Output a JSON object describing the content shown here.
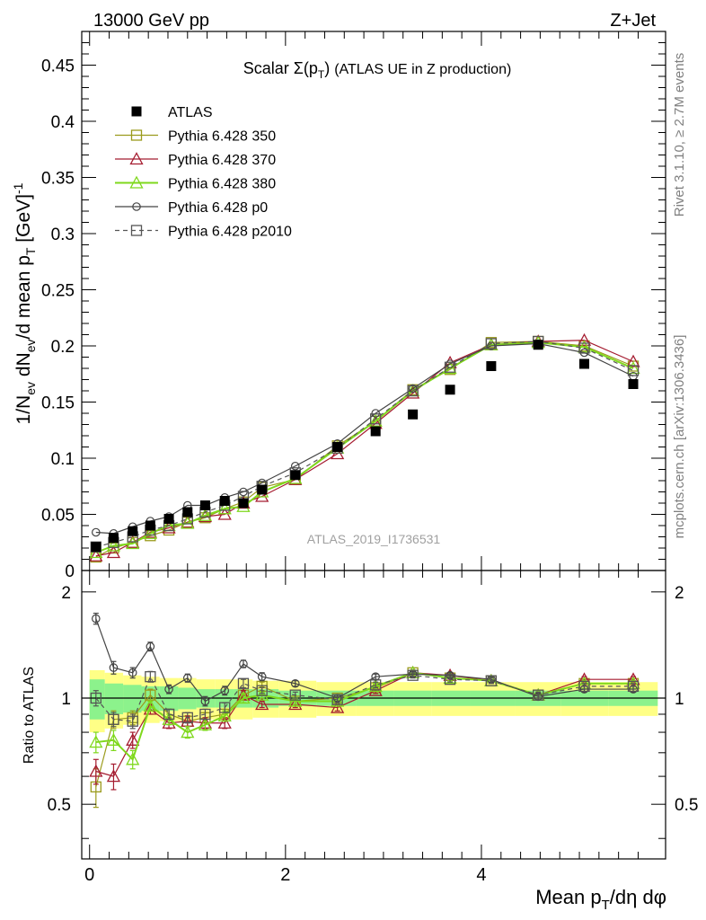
{
  "header": {
    "energy_label": "13000 GeV pp",
    "process_label": "Z+Jet"
  },
  "side_labels": {
    "rivet": "Rivet 3.1.10, ≥ 2.7M events",
    "mcplots": "mcplots.cern.ch [arXiv:1306.3436]"
  },
  "chart_data": {
    "type": "line",
    "title": "Scalar Σ(p_T) (ATLAS UE in Z production)",
    "analysis_id": "ATLAS_2019_I1736531",
    "xlabel": "Mean p_T/dη dφ",
    "ylabel": "1/N_ev dN_ev/d mean p_T [GeV]^-1",
    "ratio_ylabel": "Ratio to ATLAS",
    "xlim": [
      -0.08,
      5.88
    ],
    "ylim": [
      0,
      0.48
    ],
    "ratio_ylim": [
      0.35,
      2.3
    ],
    "x_ticks": [
      0,
      2,
      4
    ],
    "y_ticks": [
      "0",
      "0.05",
      "0.1",
      "0.15",
      "0.2",
      "0.25",
      "0.3",
      "0.35",
      "0.4",
      "0.45"
    ],
    "ratio_ticks": [
      "0.5",
      "1",
      "2"
    ],
    "legend_position": "top-left",
    "x": [
      0.065,
      0.245,
      0.44,
      0.62,
      0.81,
      1.0,
      1.18,
      1.38,
      1.57,
      1.76,
      2.1,
      2.53,
      2.92,
      3.3,
      3.68,
      4.1,
      4.58,
      5.05,
      5.55
    ],
    "ratio_band_inner": [
      0.13,
      0.1,
      0.09,
      0.08,
      0.08,
      0.07,
      0.06,
      0.06,
      0.06,
      0.06,
      0.05,
      0.05,
      0.05,
      0.05,
      0.05,
      0.05,
      0.05,
      0.05,
      0.05
    ],
    "ratio_band_outer": [
      0.2,
      0.18,
      0.16,
      0.15,
      0.14,
      0.14,
      0.13,
      0.13,
      0.13,
      0.12,
      0.12,
      0.11,
      0.11,
      0.11,
      0.11,
      0.11,
      0.11,
      0.11,
      0.11
    ],
    "series": [
      {
        "name": "ATLAS",
        "color": "#000000",
        "marker": "filled-square",
        "dashed": false,
        "values": [
          0.021,
          0.029,
          0.035,
          0.04,
          0.046,
          0.052,
          0.058,
          0.062,
          0.06,
          0.072,
          0.085,
          0.11,
          0.124,
          0.139,
          0.161,
          0.182,
          0.201,
          0.184,
          0.166
        ],
        "ratio": [
          1,
          1,
          1,
          1,
          1,
          1,
          1,
          1,
          1,
          1,
          1,
          1,
          1,
          1,
          1,
          1,
          1,
          1,
          1
        ]
      },
      {
        "name": "Pythia 6.428 350",
        "color": "#9b9b1c",
        "marker": "open-square",
        "dashed": false,
        "values": [
          0.012,
          0.02,
          0.025,
          0.031,
          0.036,
          0.043,
          0.047,
          0.055,
          0.061,
          0.074,
          0.081,
          0.111,
          0.133,
          0.161,
          0.179,
          0.203,
          0.204,
          0.2,
          0.182
        ],
        "ratio": [
          0.56,
          0.87,
          0.88,
          1.02,
          0.9,
          0.86,
          0.88,
          0.9,
          1.02,
          1.08,
          0.98,
          1.0,
          1.07,
          1.18,
          1.14,
          1.12,
          1.02,
          1.1,
          1.1
        ],
        "ratio_err": [
          0.07,
          0.05,
          0.04,
          0.04,
          0.03,
          0.03,
          0.03,
          0.03,
          0.03,
          0.03,
          0.02,
          0.02,
          0.02,
          0.02,
          0.02,
          0.02,
          0.02,
          0.02,
          0.02
        ]
      },
      {
        "name": "Pythia 6.428 370",
        "color": "#a51c30",
        "marker": "open-triangle",
        "dashed": false,
        "values": [
          0.013,
          0.016,
          0.025,
          0.034,
          0.038,
          0.043,
          0.048,
          0.05,
          0.06,
          0.066,
          0.081,
          0.104,
          0.131,
          0.158,
          0.185,
          0.201,
          0.204,
          0.205,
          0.186
        ],
        "ratio": [
          0.62,
          0.6,
          0.76,
          0.93,
          0.85,
          0.86,
          0.85,
          0.85,
          1.02,
          0.96,
          0.96,
          0.94,
          1.05,
          1.18,
          1.16,
          1.12,
          1.02,
          1.13,
          1.13
        ],
        "ratio_err": [
          0.05,
          0.05,
          0.04,
          0.03,
          0.03,
          0.03,
          0.03,
          0.03,
          0.03,
          0.02,
          0.02,
          0.02,
          0.02,
          0.02,
          0.02,
          0.02,
          0.02,
          0.02,
          0.02
        ]
      },
      {
        "name": "Pythia 6.428 380",
        "color": "#7fd81c",
        "marker": "open-triangle",
        "dashed": false,
        "values": [
          0.016,
          0.022,
          0.024,
          0.033,
          0.04,
          0.042,
          0.049,
          0.055,
          0.057,
          0.07,
          0.082,
          0.109,
          0.133,
          0.16,
          0.18,
          0.201,
          0.203,
          0.199,
          0.18
        ],
        "ratio": [
          0.75,
          0.76,
          0.67,
          0.95,
          0.87,
          0.8,
          0.84,
          0.89,
          1.0,
          1.02,
          0.98,
          0.98,
          1.08,
          1.18,
          1.14,
          1.12,
          1.02,
          1.1,
          1.1
        ],
        "ratio_err": [
          0.05,
          0.05,
          0.04,
          0.03,
          0.03,
          0.03,
          0.03,
          0.03,
          0.03,
          0.02,
          0.02,
          0.02,
          0.02,
          0.02,
          0.02,
          0.02,
          0.02,
          0.02,
          0.02
        ]
      },
      {
        "name": "Pythia 6.428 p0",
        "color": "#444444",
        "marker": "open-circle",
        "dashed": false,
        "values": [
          0.034,
          0.033,
          0.039,
          0.044,
          0.048,
          0.058,
          0.058,
          0.065,
          0.07,
          0.078,
          0.093,
          0.113,
          0.14,
          0.162,
          0.184,
          0.2,
          0.202,
          0.194,
          0.173
        ],
        "ratio": [
          1.68,
          1.22,
          1.18,
          1.4,
          1.06,
          1.14,
          0.98,
          1.05,
          1.25,
          1.15,
          1.1,
          1.0,
          1.15,
          1.17,
          1.16,
          1.13,
          1.01,
          1.06,
          1.06
        ],
        "ratio_err": [
          0.06,
          0.05,
          0.04,
          0.04,
          0.03,
          0.03,
          0.03,
          0.03,
          0.03,
          0.03,
          0.02,
          0.02,
          0.02,
          0.02,
          0.02,
          0.02,
          0.02,
          0.02,
          0.02
        ]
      },
      {
        "name": "Pythia 6.428 p2010",
        "color": "#555555",
        "marker": "open-square",
        "dashed": true,
        "values": [
          0.021,
          0.025,
          0.03,
          0.036,
          0.04,
          0.046,
          0.052,
          0.058,
          0.066,
          0.075,
          0.087,
          0.109,
          0.135,
          0.16,
          0.181,
          0.202,
          0.204,
          0.198,
          0.178
        ],
        "ratio": [
          1.0,
          0.87,
          0.86,
          1.15,
          0.9,
          0.88,
          0.9,
          0.94,
          1.1,
          1.05,
          1.02,
          0.99,
          1.09,
          1.16,
          1.13,
          1.12,
          1.02,
          1.08,
          1.08
        ],
        "ratio_err": [
          0.05,
          0.04,
          0.04,
          0.04,
          0.03,
          0.03,
          0.03,
          0.03,
          0.03,
          0.02,
          0.02,
          0.02,
          0.02,
          0.02,
          0.02,
          0.02,
          0.02,
          0.02,
          0.02
        ]
      }
    ]
  }
}
